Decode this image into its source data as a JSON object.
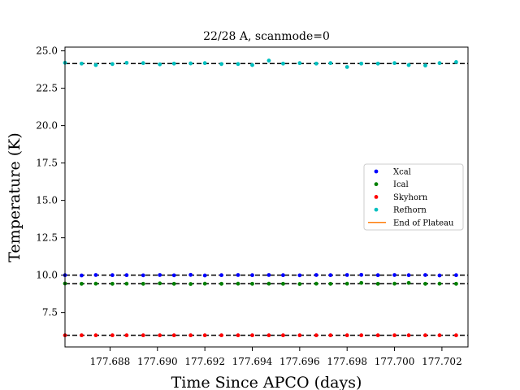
{
  "chart_data": {
    "type": "scatter",
    "title": "22/28 A, scanmode=0",
    "xlabel": "Time Since APCO (days)",
    "ylabel": "Temperature (K)",
    "xlim": [
      177.6861,
      177.7031
    ],
    "ylim": [
      5.2,
      25.25
    ],
    "xticks": [
      177.688,
      177.69,
      177.692,
      177.694,
      177.696,
      177.698,
      177.7,
      177.702
    ],
    "xtick_labels": [
      "177.688",
      "177.690",
      "177.692",
      "177.694",
      "177.696",
      "177.698",
      "177.700",
      "177.702"
    ],
    "yticks": [
      7.5,
      10.0,
      12.5,
      15.0,
      17.5,
      20.0,
      22.5,
      25.0
    ],
    "ytick_labels": [
      "7.5",
      "10.0",
      "12.5",
      "15.0",
      "17.5",
      "20.0",
      "22.5",
      "25.0"
    ],
    "x": [
      177.6861,
      177.6868,
      177.6874,
      177.6881,
      177.6887,
      177.6894,
      177.6901,
      177.6907,
      177.6914,
      177.692,
      177.6927,
      177.6934,
      177.694,
      177.6947,
      177.6953,
      177.696,
      177.6967,
      177.6973,
      177.698,
      177.6986,
      177.6993,
      177.7,
      177.7006,
      177.7013,
      177.7019,
      177.7026
    ],
    "series": [
      {
        "name": "Xcal",
        "color": "#0000ff",
        "values": [
          10.0,
          9.98,
          10.01,
          10.0,
          10.0,
          9.99,
          10.01,
          9.99,
          10.02,
          9.98,
          10.0,
          10.01,
          10.0,
          10.01,
          10.0,
          9.99,
          10.01,
          10.0,
          10.01,
          10.02,
          10.0,
          10.01,
          10.0,
          10.01,
          9.98,
          10.0
        ]
      },
      {
        "name": "Ical",
        "color": "#008000",
        "values": [
          9.44,
          9.42,
          9.43,
          9.42,
          9.43,
          9.42,
          9.45,
          9.42,
          9.41,
          9.43,
          9.42,
          9.43,
          9.42,
          9.43,
          9.42,
          9.41,
          9.43,
          9.42,
          9.43,
          9.48,
          9.42,
          9.43,
          9.48,
          9.42,
          9.43,
          9.42
        ]
      },
      {
        "name": "Skyhorn",
        "color": "#ff0000",
        "values": [
          5.98,
          5.98,
          5.98,
          5.98,
          5.98,
          5.98,
          5.98,
          5.98,
          5.98,
          5.98,
          5.98,
          5.98,
          5.98,
          5.98,
          5.98,
          5.98,
          5.98,
          5.98,
          5.98,
          5.98,
          5.98,
          5.98,
          5.98,
          5.98,
          5.98,
          5.98
        ]
      },
      {
        "name": "Refhorn",
        "color": "#00bfbf",
        "values": [
          24.2,
          24.15,
          24.05,
          24.12,
          24.2,
          24.18,
          24.1,
          24.15,
          24.16,
          24.18,
          24.12,
          24.12,
          24.05,
          24.35,
          24.15,
          24.18,
          24.15,
          24.18,
          23.92,
          24.15,
          24.15,
          24.18,
          24.05,
          24.02,
          24.18,
          24.25
        ]
      }
    ],
    "reference_lines": [
      24.15,
      10.0,
      9.43,
      5.98
    ],
    "plateau": {
      "name": "End of Plateau",
      "color": "#ff7f0e"
    },
    "legend": {
      "position": "center-right",
      "entries": [
        "Xcal",
        "Ical",
        "Skyhorn",
        "Refhorn",
        "End of Plateau"
      ]
    }
  }
}
